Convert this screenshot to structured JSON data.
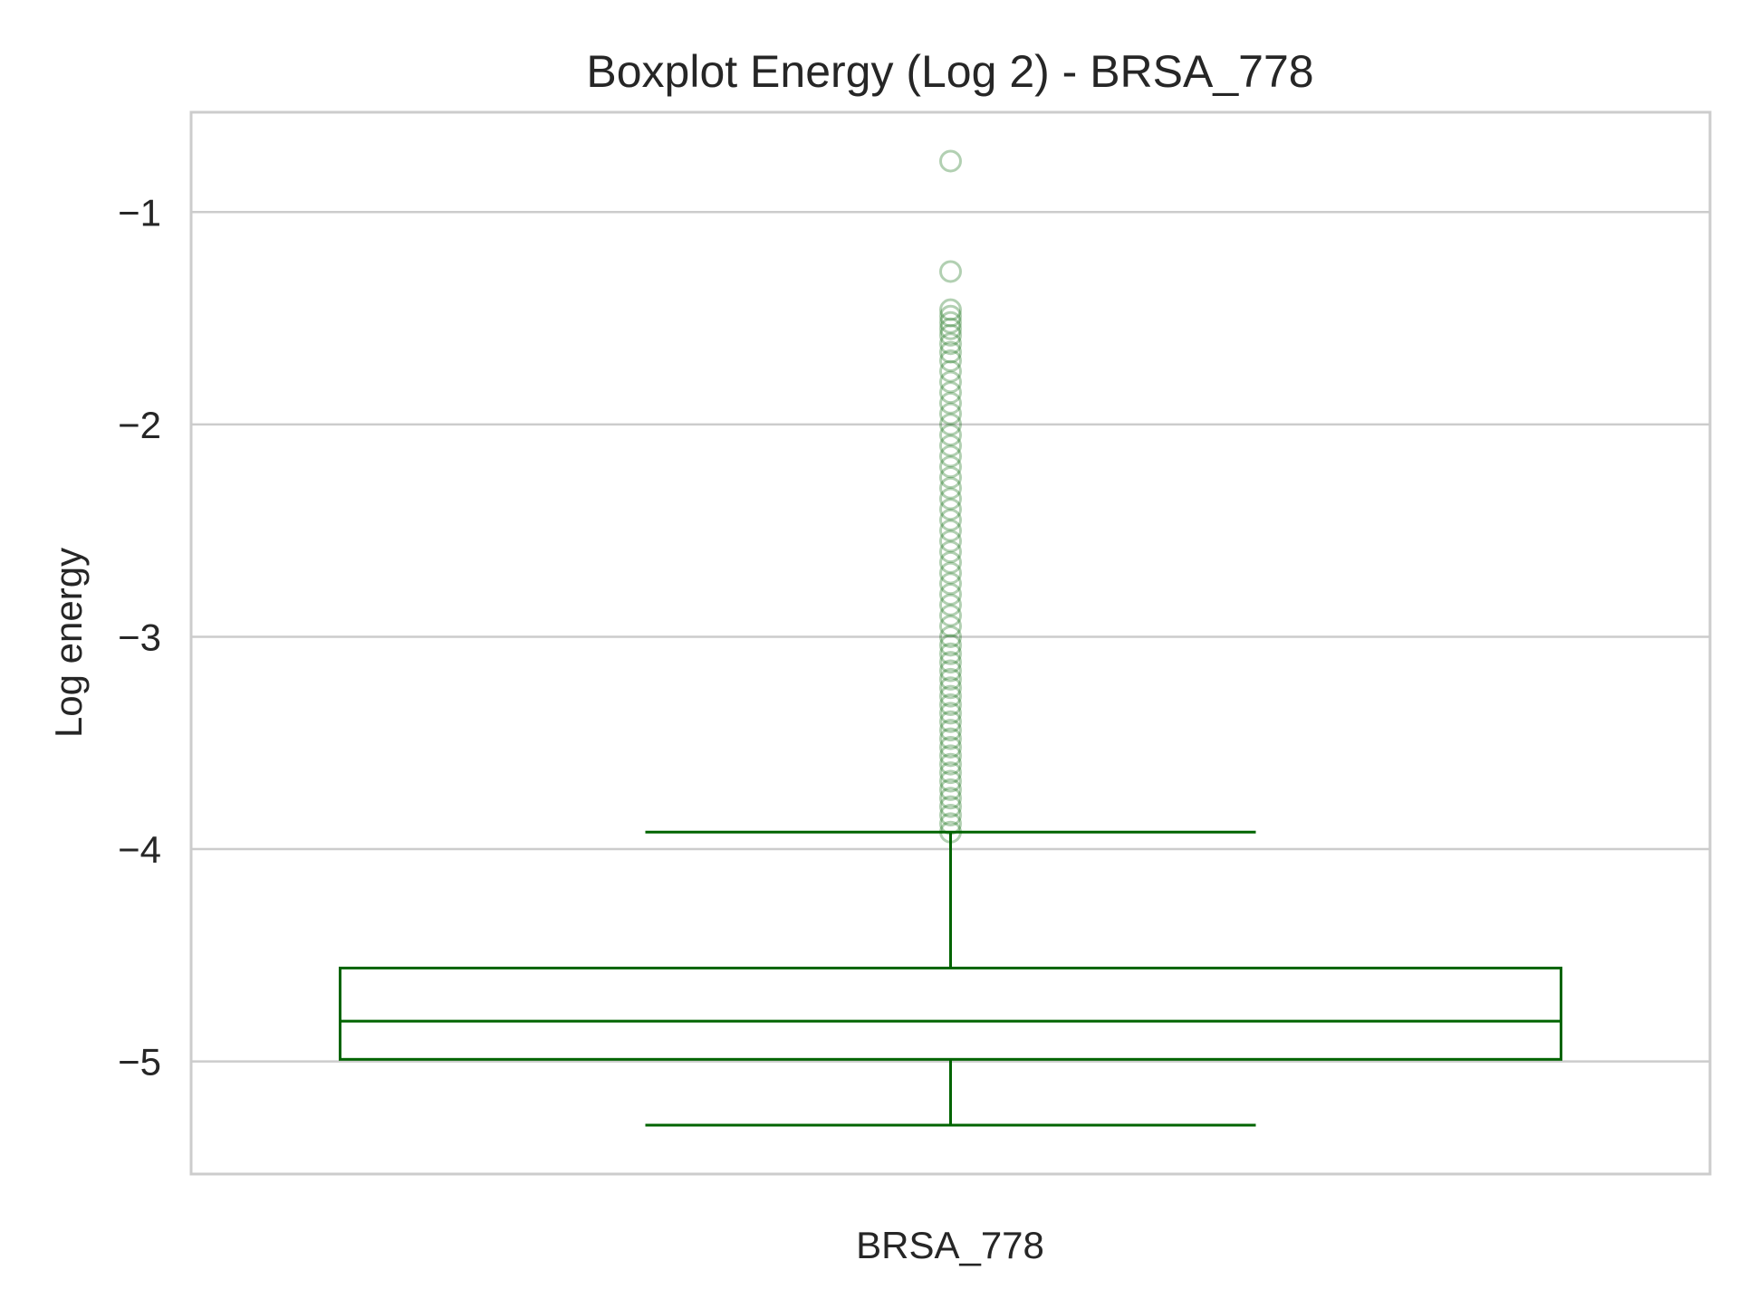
{
  "chart_data": {
    "type": "box",
    "title": "Boxplot Energy (Log 2) - BRSA_778",
    "xlabel": "",
    "ylabel": "Log energy",
    "categories": [
      "BRSA_778"
    ],
    "ylim": [
      -5.53,
      -0.53
    ],
    "yticks": [
      -1,
      -2,
      -3,
      -4,
      -5
    ],
    "ytick_labels": [
      "−1",
      "−2",
      "−3",
      "−4",
      "−5"
    ],
    "grid": "horizontal",
    "series": [
      {
        "category": "BRSA_778",
        "whisker_low": -5.3,
        "q1": -4.99,
        "median": -4.81,
        "q3": -4.56,
        "whisker_high": -3.92,
        "outliers": [
          -0.76,
          -1.28,
          -1.46,
          -1.49,
          -1.52,
          -1.55,
          -1.58,
          -1.62,
          -1.66,
          -1.7,
          -1.75,
          -1.8,
          -1.85,
          -1.9,
          -1.95,
          -2.0,
          -2.05,
          -2.1,
          -2.15,
          -2.2,
          -2.25,
          -2.3,
          -2.35,
          -2.4,
          -2.45,
          -2.5,
          -2.55,
          -2.6,
          -2.65,
          -2.7,
          -2.75,
          -2.8,
          -2.85,
          -2.9,
          -2.95,
          -3.0,
          -3.04,
          -3.08,
          -3.12,
          -3.16,
          -3.2,
          -3.24,
          -3.28,
          -3.32,
          -3.36,
          -3.4,
          -3.44,
          -3.48,
          -3.52,
          -3.56,
          -3.6,
          -3.64,
          -3.68,
          -3.72,
          -3.76,
          -3.8,
          -3.84,
          -3.88,
          -3.92
        ]
      }
    ],
    "colors": {
      "box": "#006400",
      "grid": "#cccccc",
      "frame": "#cccccc",
      "text": "#262626"
    }
  }
}
